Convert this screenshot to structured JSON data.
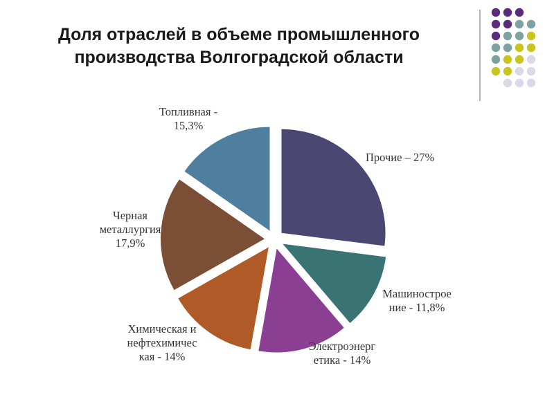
{
  "slide": {
    "title_line1": "Доля отраслей в объеме промышленного",
    "title_line2": "производства Волгоградской области"
  },
  "decor": {
    "dot_rows": [
      [
        "#5c2a7a",
        "#5c2a7a",
        "#5c2a7a",
        null
      ],
      [
        "#5c2a7a",
        "#5c2a7a",
        "#7ea2a3",
        "#7ea2a3"
      ],
      [
        "#5c2a7a",
        "#7ea2a3",
        "#7ea2a3",
        "#c9c41e"
      ],
      [
        "#7ea2a3",
        "#7ea2a3",
        "#c9c41e",
        "#c9c41e"
      ],
      [
        "#7ea2a3",
        "#c9c41e",
        "#c9c41e",
        "#d9d9e8"
      ],
      [
        "#c9c41e",
        "#c9c41e",
        "#d9d9e8",
        "#d9d9e8"
      ],
      [
        null,
        "#d9d9e8",
        "#d9d9e8",
        "#d9d9e8"
      ]
    ]
  },
  "chart_data": {
    "type": "pie",
    "title": "Доля отраслей в объеме промышленного производства Волгоградской области",
    "exploded": true,
    "categories": [
      "Прочие",
      "Машиностроение",
      "Электроэнергетика",
      "Химическая и нефтехимическая",
      "Черная металлургия",
      "Топливная"
    ],
    "values": [
      27,
      11.8,
      14,
      14,
      17.9,
      15.3
    ],
    "unit": "%",
    "colors": [
      "#4a4773",
      "#3a7373",
      "#8b3f92",
      "#b05a28",
      "#7a4f36",
      "#4f7f9e"
    ],
    "labels": [
      [
        "Прочие – 27%"
      ],
      [
        "Машиностроe",
        "ние - 11,8%"
      ],
      [
        "Электроэнерг",
        "етика -  14%"
      ],
      [
        "Химическая и",
        "нефтехимичес",
        "кая -  14%"
      ],
      [
        "Черная",
        "металлургия",
        "17,9%"
      ],
      [
        "Топливная -",
        "15,3%"
      ]
    ]
  }
}
